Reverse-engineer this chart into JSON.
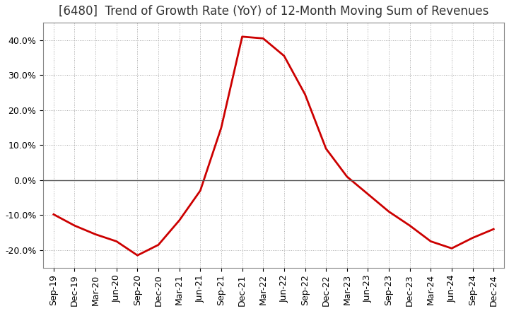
{
  "title": "[6480]  Trend of Growth Rate (YoY) of 12-Month Moving Sum of Revenues",
  "x_labels": [
    "Sep-19",
    "Dec-19",
    "Mar-20",
    "Jun-20",
    "Sep-20",
    "Dec-20",
    "Mar-21",
    "Jun-21",
    "Sep-21",
    "Dec-21",
    "Mar-22",
    "Jun-22",
    "Sep-22",
    "Dec-22",
    "Mar-23",
    "Jun-23",
    "Sep-23",
    "Dec-23",
    "Mar-24",
    "Jun-24",
    "Sep-24",
    "Dec-24"
  ],
  "y_values": [
    -0.098,
    -0.13,
    -0.155,
    -0.175,
    -0.215,
    -0.185,
    -0.115,
    -0.03,
    0.15,
    0.41,
    0.405,
    0.355,
    0.245,
    0.09,
    0.01,
    -0.04,
    -0.09,
    -0.13,
    -0.175,
    -0.195,
    -0.165,
    -0.14
  ],
  "line_color": "#cc0000",
  "ylim": [
    -0.25,
    0.45
  ],
  "yticks": [
    -0.2,
    -0.1,
    0.0,
    0.1,
    0.2,
    0.3,
    0.4
  ],
  "background_color": "#ffffff",
  "grid_color": "#aaaaaa",
  "zero_line_color": "#555555",
  "title_fontsize": 12,
  "tick_fontsize": 9,
  "line_width": 2.0
}
